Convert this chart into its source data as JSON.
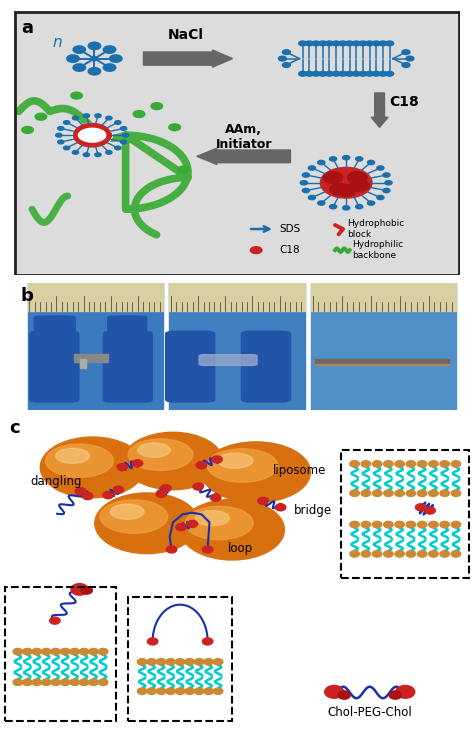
{
  "panel_a_bg": "#dcdcdc",
  "blue_color": "#1a6faf",
  "green_color": "#3aaa35",
  "red_color": "#cc2222",
  "gray_arrow": "#666666",
  "orange_dark": "#d97010",
  "orange_mid": "#f0a040",
  "orange_light": "#f8cc80",
  "cyan_tail": "#00cccc",
  "head_color": "#cc8833",
  "label_a": "a",
  "label_b": "b",
  "label_c": "c",
  "nacl_text": "NaCl",
  "c18_text": "C18",
  "aam_text": "AAm,\nInitiator",
  "sds_text": "SDS",
  "c18_legend": "C18",
  "hydrophobic_text": "Hydrophobic\nblock",
  "hydrophilic_text": "Hydrophilic\nbackbone",
  "liposome_text": "liposome",
  "dangling_text": "dangling",
  "bridge_text": "bridge",
  "loop_text": "loop",
  "chol_text": "Chol-PEG-Chol",
  "n_text": "n"
}
